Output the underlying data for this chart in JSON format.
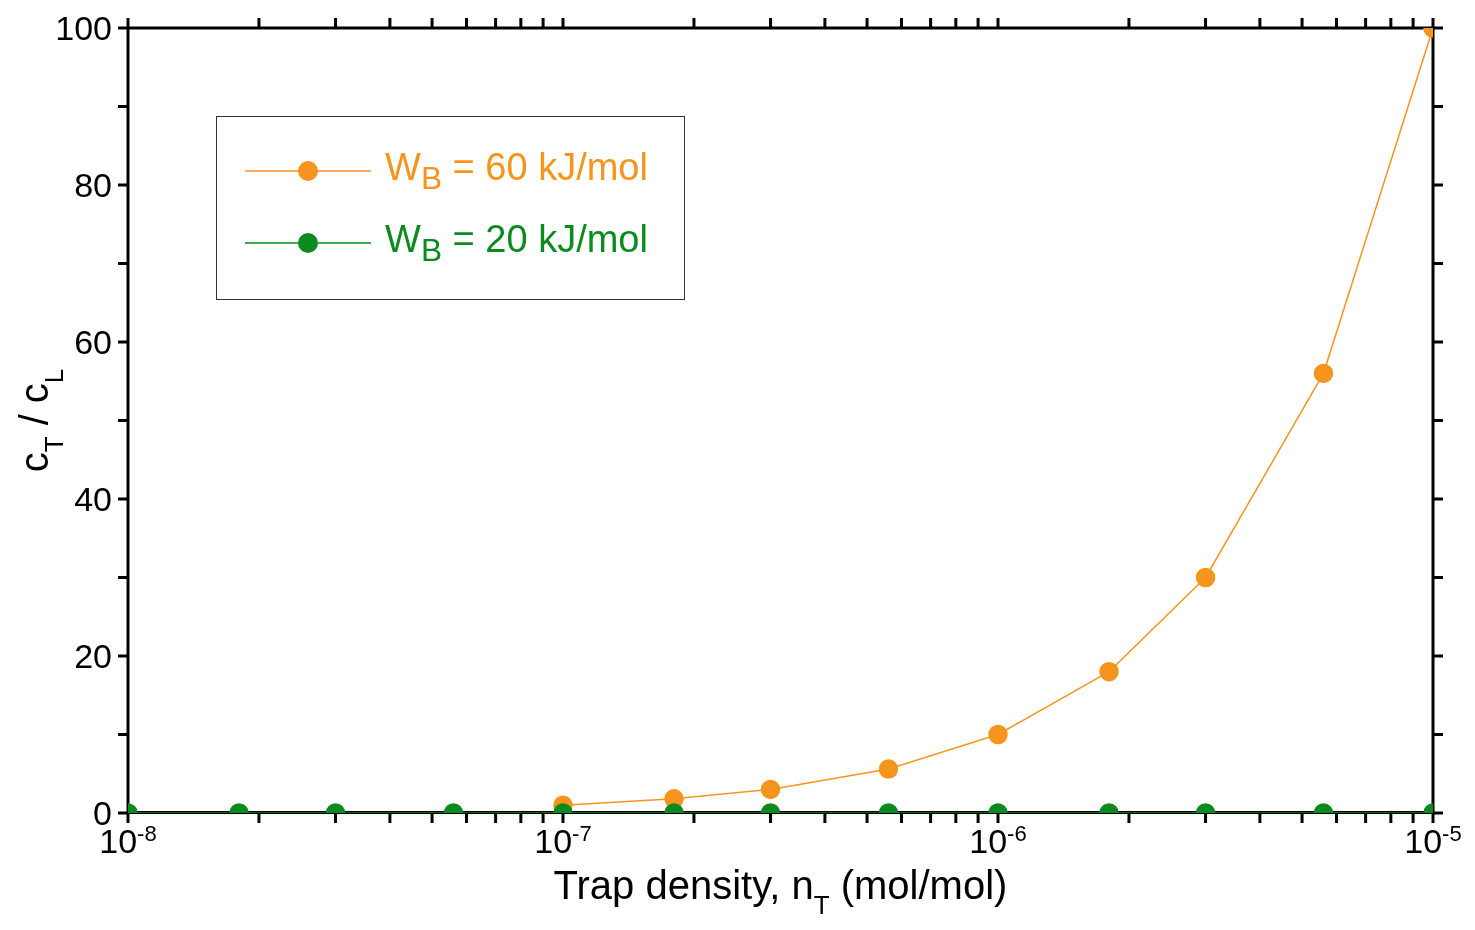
{
  "chart_data": {
    "type": "line",
    "xlabel": "Trap density, n$_{T}$ (mol/mol)",
    "ylabel": "c$_{T}$ / c$_{L}$",
    "x": [
      1e-08,
      1.8e-08,
      3e-08,
      5.6e-08,
      1e-07,
      1.8e-07,
      3e-07,
      5.6e-07,
      1e-06,
      1.8e-06,
      3e-06,
      5.6e-06,
      1e-05
    ],
    "series": [
      {
        "name": "W$_{B}$ = 60 kJ/mol",
        "color": "#f7941d",
        "values": [
          null,
          null,
          null,
          null,
          1,
          1.8,
          3,
          5.6,
          10,
          18,
          30,
          56,
          100
        ]
      },
      {
        "name": "W$_{B}$ = 20 kJ/mol",
        "color": "#0b8a1f",
        "values": [
          0,
          0,
          0,
          0,
          0,
          0,
          0,
          0,
          0,
          0,
          0,
          0,
          0
        ]
      }
    ],
    "log": "x",
    "xlim": [
      1e-08,
      1e-05
    ],
    "xticks": [
      {
        "value": 1e-08,
        "label": "10$^{-8}$"
      },
      {
        "value": 2e-08,
        "label": null
      },
      {
        "value": 3e-08,
        "label": null
      },
      {
        "value": 4e-08,
        "label": null
      },
      {
        "value": 5e-08,
        "label": null
      },
      {
        "value": 6e-08,
        "label": null
      },
      {
        "value": 7e-08,
        "label": null
      },
      {
        "value": 8e-08,
        "label": null
      },
      {
        "value": 9e-08,
        "label": null
      },
      {
        "value": 1e-07,
        "label": "10$^{-7}$"
      },
      {
        "value": 2e-07,
        "label": null
      },
      {
        "value": 3e-07,
        "label": null
      },
      {
        "value": 4e-07,
        "label": null
      },
      {
        "value": 5e-07,
        "label": null
      },
      {
        "value": 6e-07,
        "label": null
      },
      {
        "value": 7e-07,
        "label": null
      },
      {
        "value": 8e-07,
        "label": null
      },
      {
        "value": 9e-07,
        "label": null
      },
      {
        "value": 1e-06,
        "label": "10$^{-6}$"
      },
      {
        "value": 2e-06,
        "label": null
      },
      {
        "value": 3e-06,
        "label": null
      },
      {
        "value": 4e-06,
        "label": null
      },
      {
        "value": 5e-06,
        "label": null
      },
      {
        "value": 6e-06,
        "label": null
      },
      {
        "value": 7e-06,
        "label": null
      },
      {
        "value": 8e-06,
        "label": null
      },
      {
        "value": 9e-06,
        "label": null
      },
      {
        "value": 1e-05,
        "label": "10$^{-5}$"
      }
    ],
    "ylim": [
      0,
      100
    ],
    "yticks": [
      0,
      {
        "value": 10,
        "label": null
      },
      20,
      {
        "value": 30,
        "label": null
      },
      40,
      {
        "value": 50,
        "label": null
      },
      60,
      {
        "value": 70,
        "label": null
      },
      80,
      {
        "value": 90,
        "label": null
      },
      100
    ],
    "legend": "top left",
    "marker": "circle",
    "line_style": "solid"
  }
}
